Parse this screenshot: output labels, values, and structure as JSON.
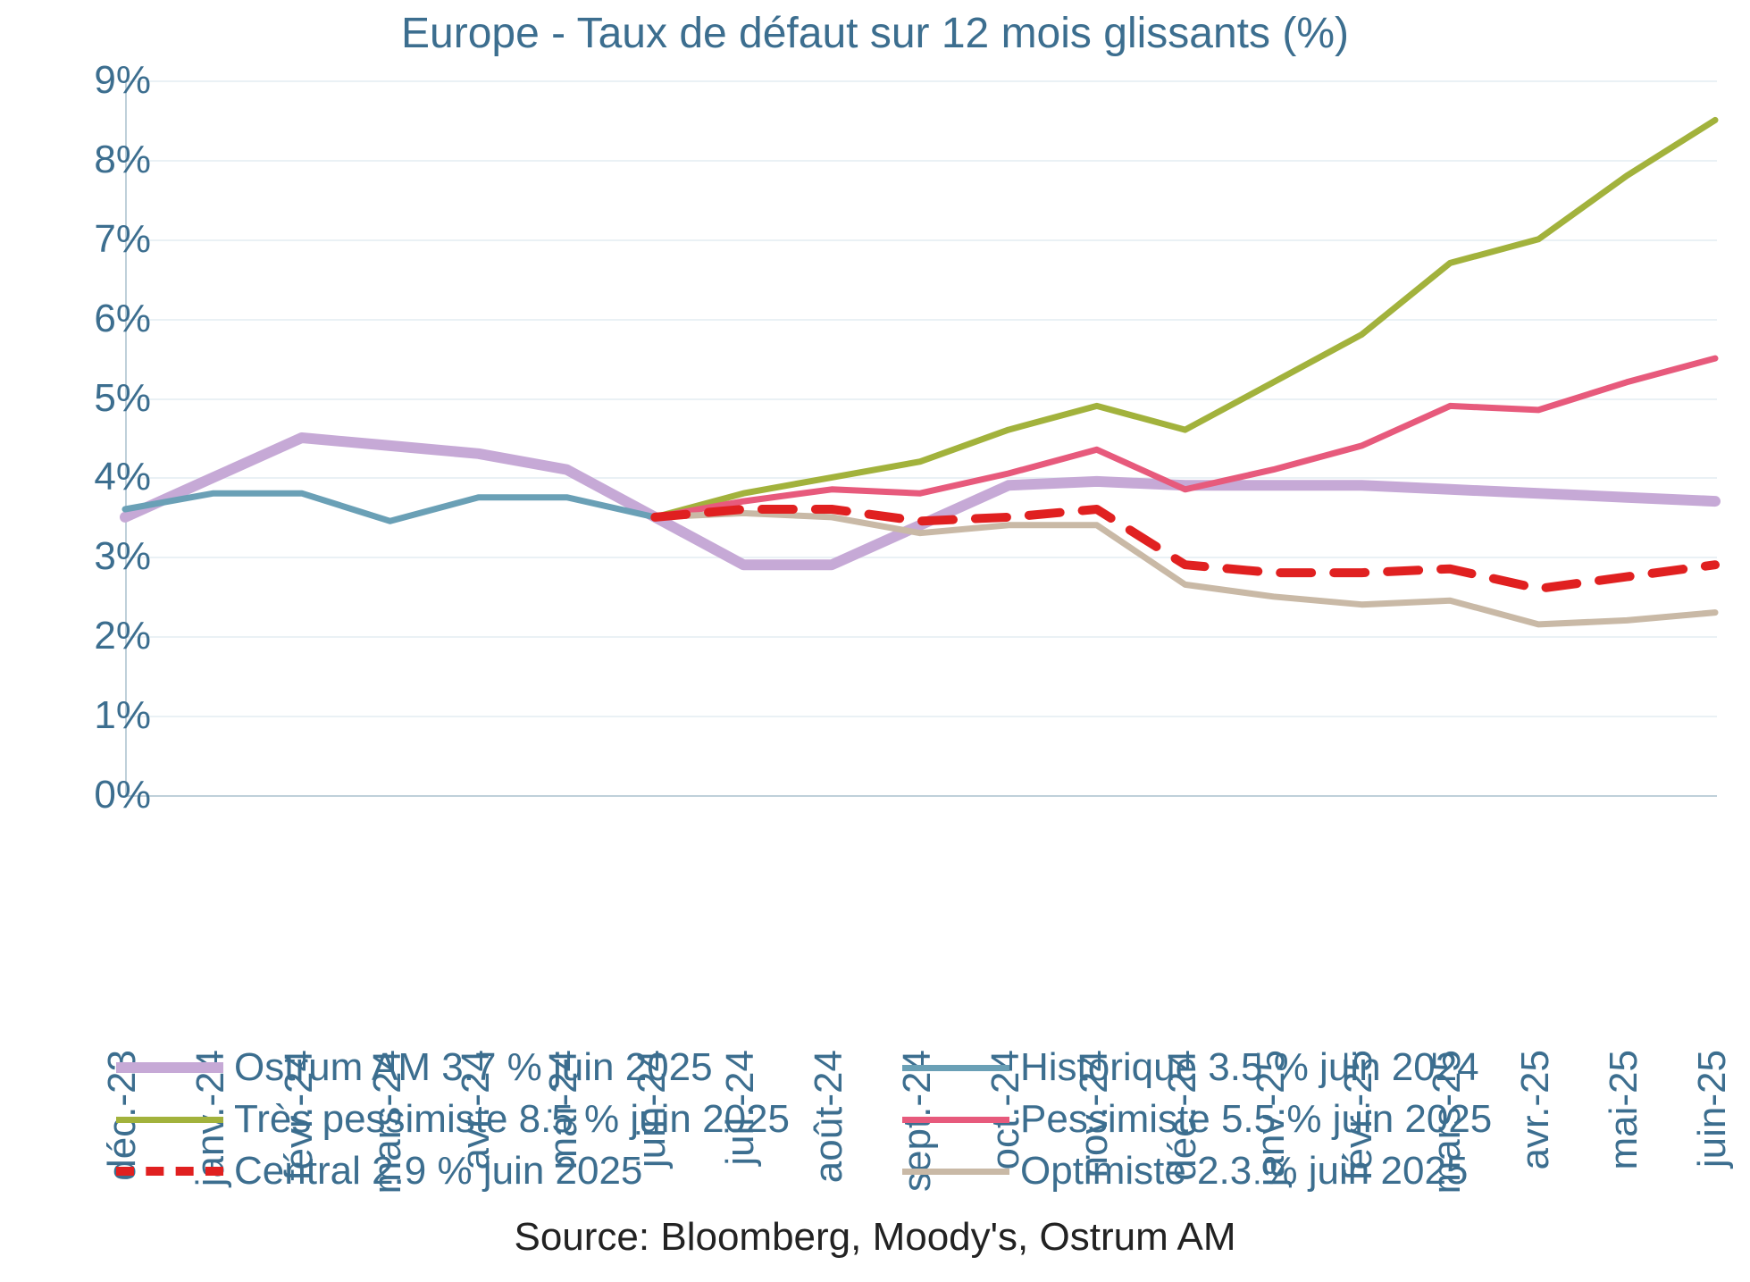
{
  "title": "Europe - Taux de défaut sur 12 mois glissants (%)",
  "title_color": "#3c6e8f",
  "title_fontsize": 48,
  "axis_label_color": "#3c6e8f",
  "axis_label_fontsize": 44,
  "background_color": "#ffffff",
  "grid_color": "#eaf1f5",
  "axis_line_color": "#bfd0da",
  "ylim": [
    0,
    9
  ],
  "ytick_step": 1,
  "ytick_format": "percent_int",
  "categories": [
    "déc.-23",
    "janv.-24",
    "févr.-24",
    "mars-24",
    "avr.-24",
    "mai-24",
    "juin-24",
    "juil.-24",
    "août-24",
    "sept.-24",
    "oct.-24",
    "nov.-24",
    "déc.-24",
    "janv.-25",
    "févr.-25",
    "mars-25",
    "avr.-25",
    "mai-25",
    "juin-25"
  ],
  "series": {
    "ostrum": {
      "label": "Ostrum AM 3.7 % juin 2025",
      "color": "#c6a9d6",
      "width": 12,
      "dash": null,
      "values": [
        3.5,
        4.0,
        4.5,
        4.4,
        4.3,
        4.1,
        3.5,
        2.9,
        2.9,
        3.4,
        3.9,
        3.95,
        3.9,
        3.9,
        3.9,
        3.85,
        3.8,
        3.75,
        3.7
      ]
    },
    "historique": {
      "label": "Historique 3.5 % juin 2024",
      "color": "#6aa0b6",
      "width": 7,
      "dash": null,
      "values": [
        3.6,
        3.8,
        3.8,
        3.45,
        3.75,
        3.75,
        3.5,
        null,
        null,
        null,
        null,
        null,
        null,
        null,
        null,
        null,
        null,
        null,
        null
      ]
    },
    "tres_pessimiste": {
      "label": "Très pessimiste 8.5 % juin 2025",
      "color": "#a2b23c",
      "width": 7,
      "dash": null,
      "values": [
        null,
        null,
        null,
        null,
        null,
        null,
        3.5,
        3.8,
        4.0,
        4.2,
        4.6,
        4.9,
        4.6,
        5.2,
        5.8,
        6.7,
        7.0,
        7.8,
        8.5
      ]
    },
    "pessimiste": {
      "label": "Pessimiste 5.5 % juin 2025",
      "color": "#e75a7c",
      "width": 7,
      "dash": null,
      "values": [
        null,
        null,
        null,
        null,
        null,
        null,
        3.5,
        3.7,
        3.85,
        3.8,
        4.05,
        4.35,
        3.85,
        4.1,
        4.4,
        4.9,
        4.85,
        5.2,
        5.5
      ]
    },
    "central": {
      "label": "Central 2.9 % juin 2025",
      "color": "#e02020",
      "width": 10,
      "dash": "35 25",
      "values": [
        null,
        null,
        null,
        null,
        null,
        null,
        3.5,
        3.6,
        3.6,
        3.45,
        3.5,
        3.6,
        2.9,
        2.8,
        2.8,
        2.85,
        2.6,
        2.75,
        2.9
      ]
    },
    "optimiste": {
      "label": "Optimiste 2.3 % juin 2025",
      "color": "#c9b9a6",
      "width": 7,
      "dash": null,
      "values": [
        null,
        null,
        null,
        null,
        null,
        null,
        3.5,
        3.55,
        3.5,
        3.3,
        3.4,
        3.4,
        2.65,
        2.5,
        2.4,
        2.45,
        2.15,
        2.2,
        2.3
      ]
    }
  },
  "legend_layout": [
    [
      "ostrum",
      "historique"
    ],
    [
      "tres_pessimiste",
      "pessimiste"
    ],
    [
      "central",
      "optimiste"
    ]
  ],
  "source_text": "Source: Bloomberg, Moody's, Ostrum AM",
  "source_color": "#222222"
}
